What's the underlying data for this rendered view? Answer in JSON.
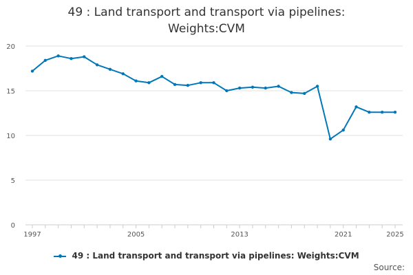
{
  "chart_data": {
    "type": "line",
    "title_lines": [
      "49 : Land transport and transport via pipelines:",
      "Weights:CVM"
    ],
    "xlabel": "",
    "ylabel": "",
    "xlim": [
      1997,
      2025
    ],
    "ylim": [
      0,
      20
    ],
    "y_ticks": [
      0,
      5,
      10,
      15,
      20
    ],
    "x_ticks": [
      1997,
      2005,
      2013,
      2021,
      2025
    ],
    "x_minor_ticks": [
      1997,
      1998,
      1999,
      2000,
      2001,
      2002,
      2003,
      2004,
      2005,
      2006,
      2007,
      2008,
      2009,
      2010,
      2011,
      2012,
      2013,
      2014,
      2015,
      2016,
      2017,
      2018,
      2019,
      2020,
      2021,
      2022,
      2023,
      2024,
      2025
    ],
    "grid": "horizontal",
    "legend_position": "bottom",
    "series": [
      {
        "name": "49 : Land transport and transport via pipelines: Weights:CVM",
        "color": "#0077b8",
        "x": [
          1997,
          1998,
          1999,
          2000,
          2001,
          2002,
          2003,
          2004,
          2005,
          2006,
          2007,
          2008,
          2009,
          2010,
          2011,
          2012,
          2013,
          2014,
          2015,
          2016,
          2017,
          2018,
          2019,
          2020,
          2021,
          2022,
          2023,
          2024,
          2025
        ],
        "values": [
          17.2,
          18.4,
          18.9,
          18.6,
          18.8,
          17.9,
          17.4,
          16.9,
          16.1,
          15.9,
          16.6,
          15.7,
          15.6,
          15.9,
          15.9,
          15.0,
          15.3,
          15.4,
          15.3,
          15.5,
          14.8,
          14.7,
          15.5,
          9.6,
          10.6,
          13.2,
          12.6,
          12.6,
          12.6
        ]
      }
    ]
  },
  "legend": {
    "label": "49 : Land transport and transport via pipelines: Weights:CVM"
  },
  "source": {
    "label": "Source:"
  }
}
